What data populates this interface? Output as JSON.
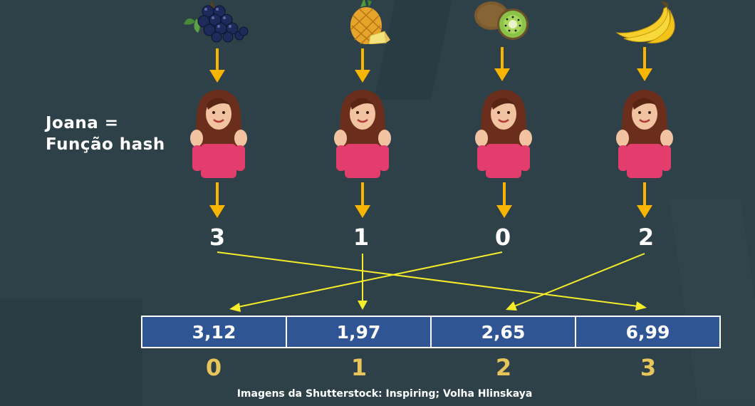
{
  "label": {
    "line1": "Joana =",
    "line2": "Função hash"
  },
  "fruits": [
    {
      "icon": "grapes-icon"
    },
    {
      "icon": "pineapple-icon"
    },
    {
      "icon": "kiwi-icon"
    },
    {
      "icon": "bananas-icon"
    }
  ],
  "hash_values": [
    "3",
    "1",
    "0",
    "2"
  ],
  "array": {
    "cells": [
      "3,12",
      "1,97",
      "2,65",
      "6,99"
    ],
    "indices": [
      "0",
      "1",
      "2",
      "3"
    ]
  },
  "credit": "Imagens da Shutterstock: Inspiring; Volha Hlinskaya",
  "colors": {
    "background": "#2e4149",
    "down_arrow": "#f7b500",
    "mapping_arrow": "#f5ec2a",
    "cell_fill": "#2f5595",
    "index_text": "#e8c55a"
  }
}
